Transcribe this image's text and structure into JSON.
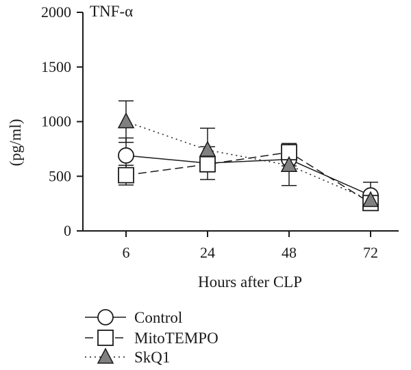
{
  "chart_data": {
    "type": "line",
    "title": "TNF-α",
    "xlabel": "Hours after CLP",
    "ylabel": "(pg/ml)",
    "categories": [
      "6",
      "24",
      "48",
      "72"
    ],
    "yticks": [
      "0",
      "500",
      "1000",
      "1500",
      "2000"
    ],
    "ylim": [
      0,
      2000
    ],
    "grid": false,
    "legend_position": "bottom-left",
    "series": [
      {
        "name": "Control",
        "marker": "circle",
        "line_style": "solid",
        "values": [
          690,
          620,
          655,
          325
        ],
        "errors": [
          160,
          150,
          60,
          120
        ]
      },
      {
        "name": "MitoTEMPO",
        "marker": "square",
        "line_style": "dashed",
        "values": [
          510,
          610,
          720,
          255
        ],
        "errors": [
          90,
          60,
          80,
          60
        ]
      },
      {
        "name": "SkQ1",
        "marker": "triangle",
        "line_style": "dotted",
        "values": [
          1000,
          740,
          600,
          280
        ],
        "errors": [
          190,
          200,
          185,
          50
        ]
      }
    ]
  }
}
